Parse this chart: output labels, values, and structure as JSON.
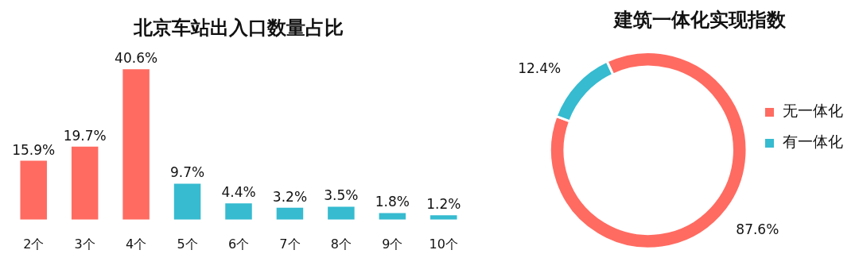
{
  "chart_data": [
    {
      "type": "bar",
      "title": "北京车站出入口数量占比",
      "categories": [
        "2个",
        "3个",
        "4个",
        "5个",
        "6个",
        "7个",
        "8个",
        "9个",
        "10个"
      ],
      "values": [
        15.9,
        19.7,
        40.6,
        9.7,
        4.4,
        3.2,
        3.5,
        1.8,
        1.2
      ],
      "colors": [
        "#ff6b61",
        "#ff6b61",
        "#ff6b61",
        "#36bbd0",
        "#36bbd0",
        "#36bbd0",
        "#36bbd0",
        "#36bbd0",
        "#36bbd0"
      ],
      "value_labels": [
        "15.9%",
        "19.7%",
        "40.6%",
        "9.7%",
        "4.4%",
        "3.2%",
        "3.5%",
        "1.8%",
        "1.2%"
      ],
      "grid": false,
      "legend": false,
      "tick_labels": "x"
    },
    {
      "type": "donut",
      "title": "建筑一体化实现指数",
      "categories": [
        "无一体化",
        "有一体化"
      ],
      "values": [
        87.6,
        12.4
      ],
      "colors": [
        "#ff6b61",
        "#36bbd0"
      ],
      "value_labels": [
        "87.6%",
        "12.4%"
      ],
      "legend": "right"
    }
  ]
}
